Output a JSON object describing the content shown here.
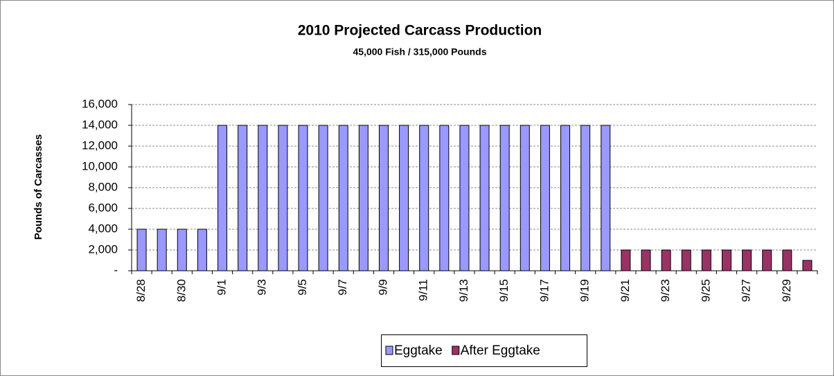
{
  "chart_data": {
    "type": "bar",
    "title": "2010 Projected Carcass Production",
    "subtitle": "45,000  Fish / 315,000  Pounds",
    "y_label": "Pounds of Carcasses",
    "categories": [
      "8/28",
      null,
      "8/30",
      null,
      "9/1",
      null,
      "9/3",
      null,
      "9/5",
      null,
      "9/7",
      null,
      "9/9",
      null,
      "9/11",
      null,
      "9/13",
      null,
      "9/15",
      null,
      "9/17",
      null,
      "9/19",
      null,
      "9/21",
      null,
      "9/23",
      null,
      "9/25",
      null,
      "9/27",
      null,
      "9/29",
      null
    ],
    "series": [
      {
        "name": "Eggtake",
        "color": "#9999ff",
        "values": [
          4000,
          4000,
          4000,
          4000,
          14000,
          14000,
          14000,
          14000,
          14000,
          14000,
          14000,
          14000,
          14000,
          14000,
          14000,
          14000,
          14000,
          14000,
          14000,
          14000,
          14000,
          14000,
          14000,
          14000,
          null,
          null,
          null,
          null,
          null,
          null,
          null,
          null,
          null,
          null
        ]
      },
      {
        "name": "After Eggtake",
        "color": "#993366",
        "values": [
          null,
          null,
          null,
          null,
          null,
          null,
          null,
          null,
          null,
          null,
          null,
          null,
          null,
          null,
          null,
          null,
          null,
          null,
          null,
          null,
          null,
          null,
          null,
          null,
          2000,
          2000,
          2000,
          2000,
          2000,
          2000,
          2000,
          2000,
          2000,
          1000
        ]
      }
    ],
    "ylim": [
      0,
      16000
    ],
    "yticks": [
      {
        "value": 0,
        "label": "-"
      },
      {
        "value": 2000,
        "label": "2,000"
      },
      {
        "value": 4000,
        "label": "4,000"
      },
      {
        "value": 6000,
        "label": "6,000"
      },
      {
        "value": 8000,
        "label": "8,000"
      },
      {
        "value": 10000,
        "label": "10,000"
      },
      {
        "value": 12000,
        "label": "12,000"
      },
      {
        "value": 14000,
        "label": "14,000"
      },
      {
        "value": 16000,
        "label": "16,000"
      }
    ],
    "grid": true,
    "legend": "bottom"
  }
}
